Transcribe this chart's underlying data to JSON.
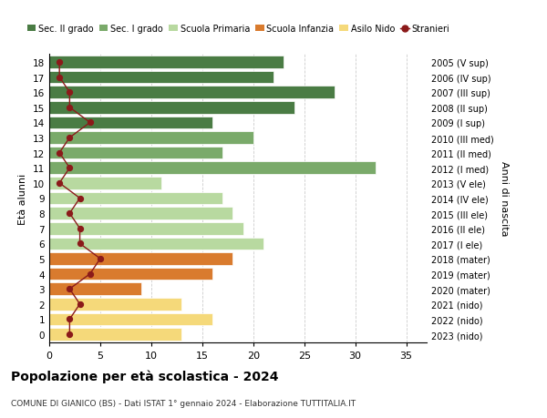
{
  "ages": [
    18,
    17,
    16,
    15,
    14,
    13,
    12,
    11,
    10,
    9,
    8,
    7,
    6,
    5,
    4,
    3,
    2,
    1,
    0
  ],
  "labels_right": [
    "2005 (V sup)",
    "2006 (IV sup)",
    "2007 (III sup)",
    "2008 (II sup)",
    "2009 (I sup)",
    "2010 (III med)",
    "2011 (II med)",
    "2012 (I med)",
    "2013 (V ele)",
    "2014 (IV ele)",
    "2015 (III ele)",
    "2016 (II ele)",
    "2017 (I ele)",
    "2018 (mater)",
    "2019 (mater)",
    "2020 (mater)",
    "2021 (nido)",
    "2022 (nido)",
    "2023 (nido)"
  ],
  "bar_values": [
    23,
    22,
    28,
    24,
    16,
    20,
    17,
    32,
    11,
    17,
    18,
    19,
    21,
    18,
    16,
    9,
    13,
    16,
    13
  ],
  "bar_colors": [
    "#4a7c44",
    "#4a7c44",
    "#4a7c44",
    "#4a7c44",
    "#4a7c44",
    "#7aaa6a",
    "#7aaa6a",
    "#7aaa6a",
    "#b8d9a0",
    "#b8d9a0",
    "#b8d9a0",
    "#b8d9a0",
    "#b8d9a0",
    "#d97b2e",
    "#d97b2e",
    "#d97b2e",
    "#f5d97a",
    "#f5d97a",
    "#f5d97a"
  ],
  "stranieri_values": [
    1,
    1,
    2,
    2,
    4,
    2,
    1,
    2,
    1,
    3,
    2,
    3,
    3,
    5,
    4,
    2,
    3,
    2,
    2
  ],
  "legend_labels": [
    "Sec. II grado",
    "Sec. I grado",
    "Scuola Primaria",
    "Scuola Infanzia",
    "Asilo Nido",
    "Stranieri"
  ],
  "legend_colors": [
    "#4a7c44",
    "#7aaa6a",
    "#b8d9a0",
    "#d97b2e",
    "#f5d97a",
    "#8b1a1a"
  ],
  "title": "Popolazione per età scolastica - 2024",
  "subtitle": "COMUNE DI GIANICO (BS) - Dati ISTAT 1° gennaio 2024 - Elaborazione TUTTITALIA.IT",
  "ylabel_left": "Età alunni",
  "ylabel_right": "Anni di nascita",
  "xlim": [
    0,
    37
  ],
  "xticks": [
    0,
    5,
    10,
    15,
    20,
    25,
    30,
    35
  ],
  "background_color": "#ffffff",
  "grid_color": "#cccccc",
  "stranieri_color": "#8b1a1a"
}
